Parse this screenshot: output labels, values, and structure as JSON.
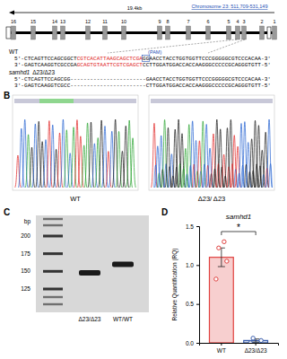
{
  "gene_diagram": {
    "size_label": "19.4kb",
    "location": "Chromosome 23: 511,709-531,149",
    "exons": [
      "16",
      "15",
      "14",
      "13",
      "12",
      "11",
      "10",
      "9",
      "8",
      "7",
      "6",
      "5",
      "4",
      "3",
      "2",
      "1"
    ]
  },
  "sequences": [
    {
      "genotype": "WT",
      "pam_label": "(PAM)",
      "lines": [
        {
          "prefix": "5'-CTCAGTTCCAGCGGCT",
          "target": "CGTCACATTAAGCAGCTCGA",
          "pam": "GG",
          "suffix": "AACCTACCTGGTGGTTCCCGGGGGCGTCCCACAA-3'"
        },
        {
          "prefix": "3'-GAGTCAAGGTCGCCGA",
          "target": "GCAGTGTAATTCGTCGAGCT",
          "suffix": "CCTTGGATGGACCACCAAGGGCCCCCGCAGGGTGTT-5'"
        }
      ]
    },
    {
      "gene": "samhd1",
      "genotype": "Δ23/Δ23",
      "lines": [
        {
          "text": "5'-CTCAGTTCCAGCGG-----------------------GAACCTACCTGGTGGTTCCCGGGGGCGTCCCACAA-3'"
        },
        {
          "text": "3'-GAGTCAAGGTCGCC-----------------------CTTGGATGGACCACCAAGGGCCCCCGCAGGGTGTT-5'"
        }
      ]
    }
  ],
  "chromatogram": {
    "panel": "B",
    "traces": [
      {
        "label": "WT"
      },
      {
        "label": "Δ23/ Δ23"
      }
    ]
  },
  "gel": {
    "panel": "C",
    "unit": "bp",
    "ladder": [
      200,
      175,
      150,
      125
    ],
    "lanes": [
      {
        "label": "Δ23/Δ23",
        "band": 148
      },
      {
        "label": "WT/WT",
        "band": 160
      }
    ]
  },
  "chart_data": {
    "panel": "D",
    "type": "bar",
    "title": "samhd1",
    "y_label": "Relative Quantification (RQ)",
    "categories": [
      "WT",
      "Δ23/Δ23"
    ],
    "values": [
      1.1,
      0.03
    ],
    "errors": [
      0.12,
      0.02
    ],
    "points": [
      [
        0.82,
        1.05,
        1.22,
        1.3
      ],
      [
        0.0,
        0.03,
        0.06
      ]
    ],
    "colors": [
      "#e0413f",
      "#3b5fae"
    ],
    "annotation": "*",
    "ylim": [
      0,
      1.5
    ],
    "yticks": [
      {
        "value": 0,
        "label": "0.0"
      },
      {
        "value": 0.5,
        "label": "0.5"
      },
      {
        "value": 1,
        "label": "1.0"
      },
      {
        "value": 1.5,
        "label": "1.5"
      }
    ]
  }
}
